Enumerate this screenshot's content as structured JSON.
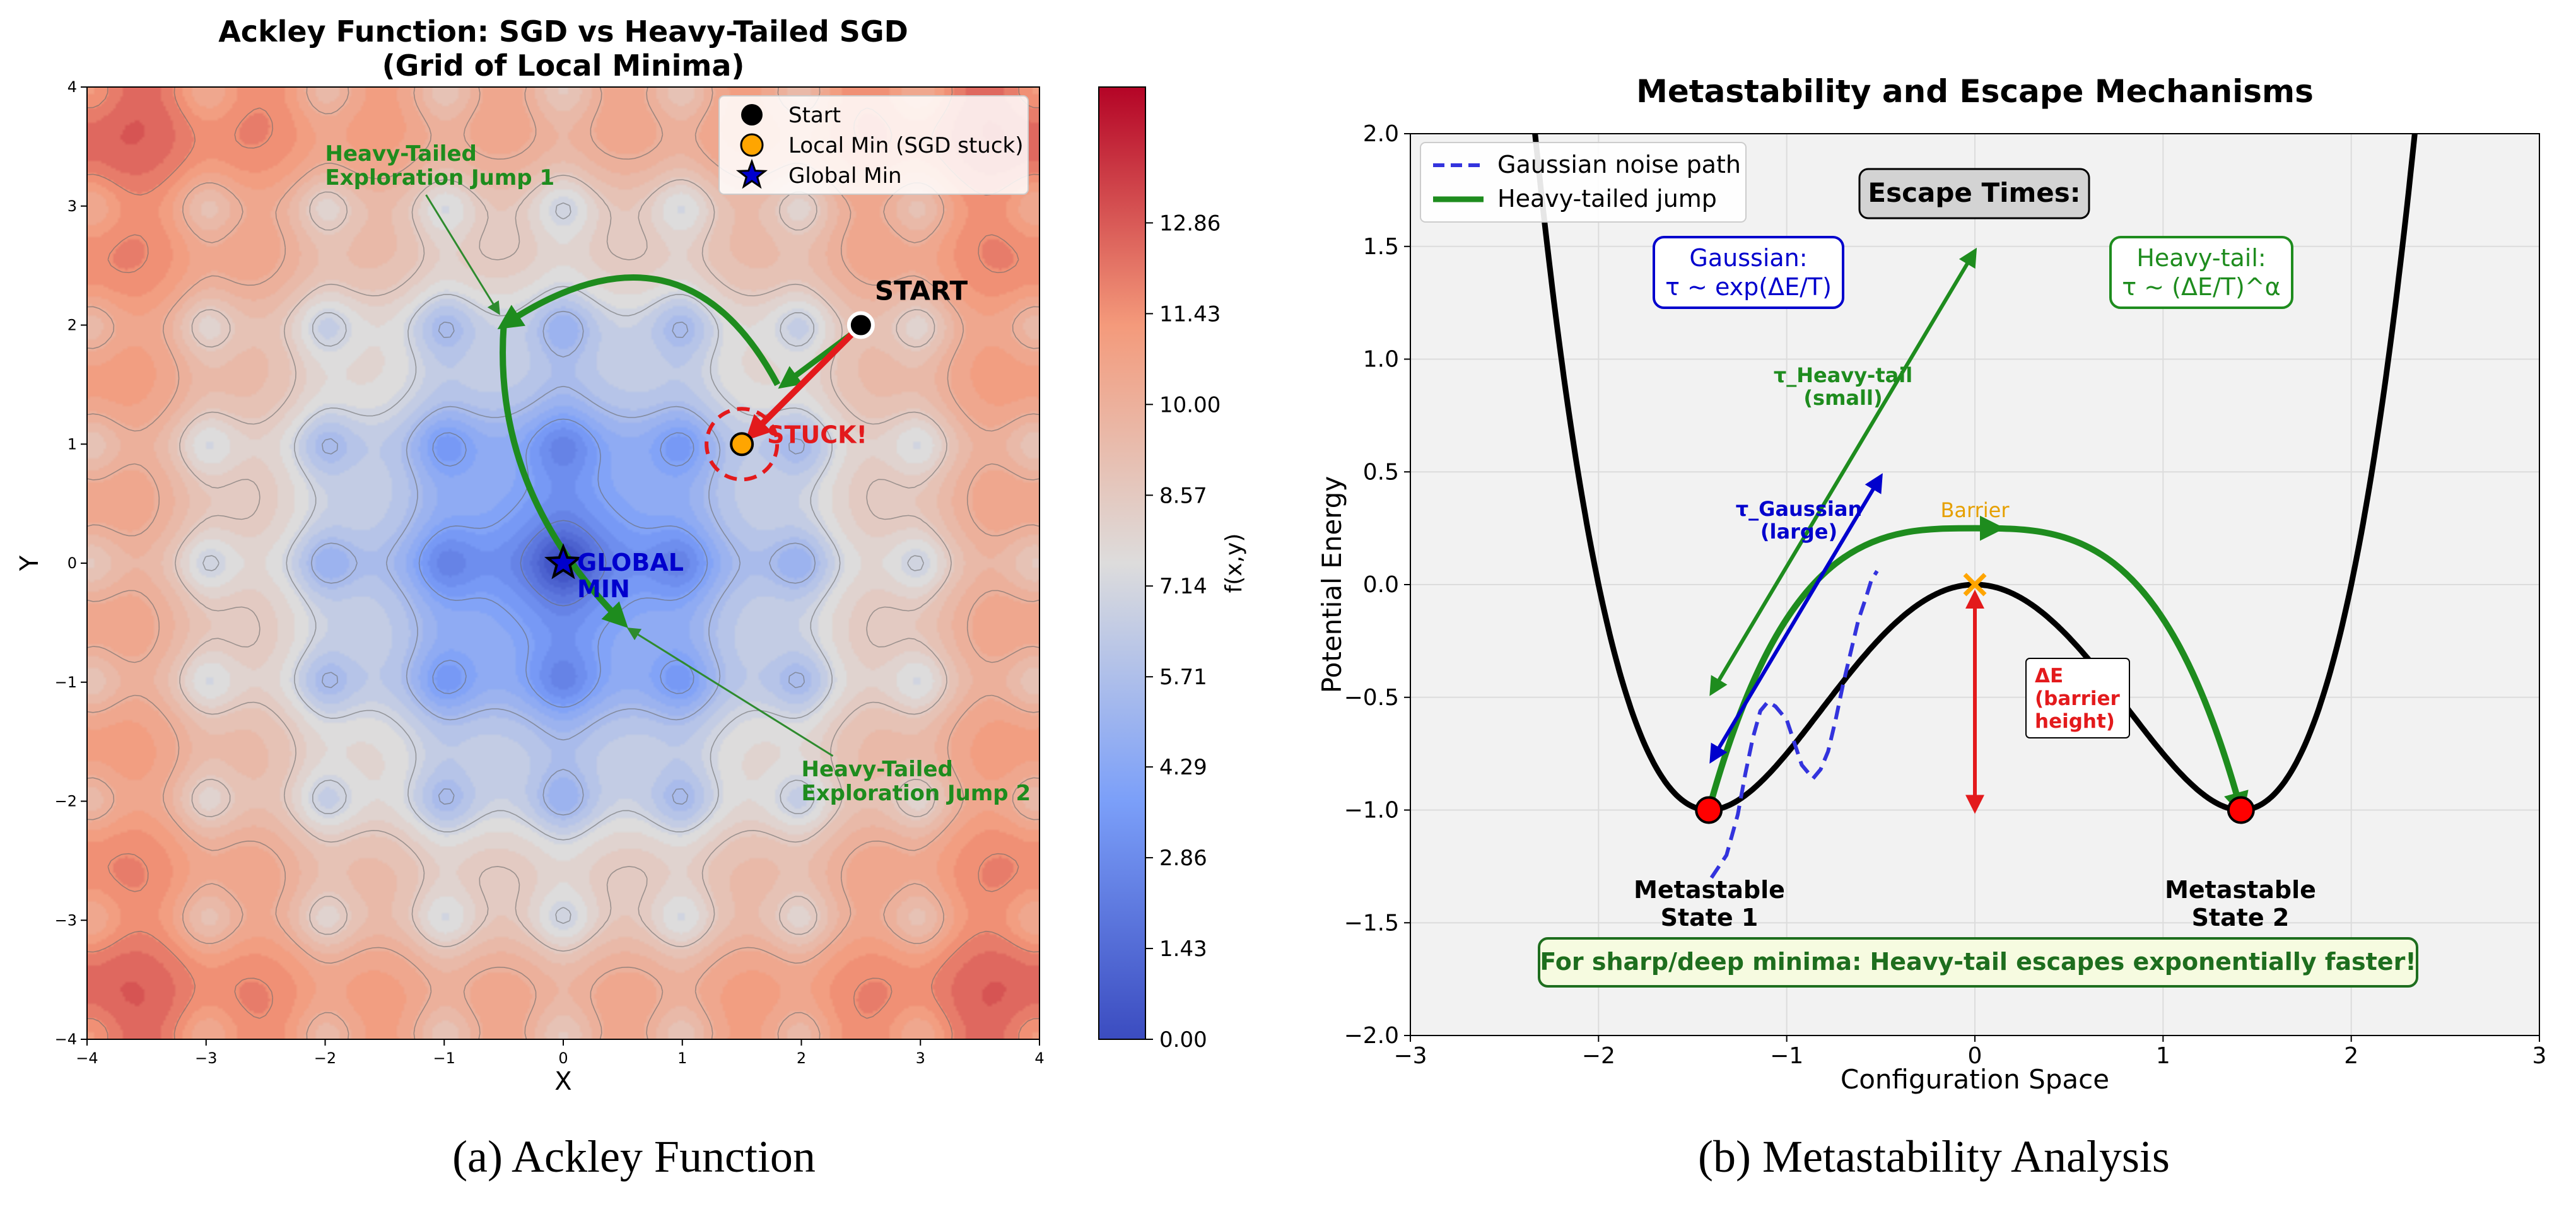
{
  "chart_data": [
    {
      "type": "contour",
      "title_line1": "Ackley Function: SGD vs Heavy-Tailed SGD",
      "title_line2": "(Grid of Local Minima)",
      "xlabel": "X",
      "ylabel": "Y",
      "xlim": [
        -4,
        4
      ],
      "ylim": [
        -4,
        4
      ],
      "xticks": [
        -4,
        -3,
        -2,
        -1,
        0,
        1,
        2,
        3,
        4
      ],
      "yticks": [
        -4,
        -3,
        -2,
        -1,
        0,
        1,
        2,
        3,
        4
      ],
      "xtick_labels": [
        "−4",
        "−3",
        "−2",
        "−1",
        "0",
        "1",
        "2",
        "3",
        "4"
      ],
      "ytick_labels": [
        "−4",
        "−3",
        "−2",
        "−1",
        "0",
        "1",
        "2",
        "3",
        "4"
      ],
      "colorbar": {
        "label": "f(x,y)",
        "range": [
          0,
          15
        ],
        "ticks": [
          0.0,
          1.43,
          2.86,
          4.29,
          5.71,
          7.14,
          8.57,
          10.0,
          11.43,
          12.86
        ],
        "tick_labels": [
          "0.00",
          "1.43",
          "2.86",
          "4.29",
          "5.71",
          "7.14",
          "8.57",
          "10.00",
          "11.43",
          "12.86"
        ],
        "cmap": "coolwarm"
      },
      "points": {
        "start": {
          "x": 2.5,
          "y": 2.0,
          "label": "START"
        },
        "local_min": {
          "x": 1.5,
          "y": 1.0,
          "label": "STUCK!"
        },
        "global_min": {
          "x": 0.0,
          "y": 0.0,
          "label_line1": "GLOBAL",
          "label_line2": "MIN"
        }
      },
      "sgd_path": [
        [
          2.5,
          2.0
        ],
        [
          1.5,
          1.0
        ]
      ],
      "heavy_tail_path": {
        "start": [
          1.8,
          1.5
        ],
        "control": [
          1.0,
          3.0
        ],
        "end": [
          -0.5,
          2.0
        ],
        "second_start": [
          -0.5,
          2.0
        ],
        "second_control": [
          -0.6,
          0.6
        ],
        "second_end": [
          0.5,
          -0.5
        ]
      },
      "annotations": [
        {
          "line1": "Heavy-Tailed",
          "line2": "Exploration Jump 1",
          "text_xy": [
            -2.0,
            3.2
          ],
          "point_xy": [
            -0.5,
            2.05
          ]
        },
        {
          "line1": "Heavy-Tailed",
          "line2": "Exploration Jump 2",
          "text_xy": [
            2.0,
            -1.8
          ],
          "point_xy": [
            0.5,
            -0.5
          ]
        }
      ],
      "legend": {
        "position": "top-right",
        "items": [
          {
            "label": "Start",
            "marker": "circle",
            "color": "#000000"
          },
          {
            "label": "Local Min (SGD stuck)",
            "marker": "circle",
            "color": "#ffa500"
          },
          {
            "label": "Global Min",
            "marker": "star",
            "color": "#0000cd"
          }
        ]
      },
      "caption": "(a) Ackley Function"
    },
    {
      "type": "line",
      "title": "Metastability and Escape Mechanisms",
      "xlabel": "Configuration Space",
      "ylabel": "Potential Energy",
      "xlim": [
        -3,
        3
      ],
      "ylim": [
        -2,
        2
      ],
      "xticks": [
        -3,
        -2,
        -1,
        0,
        1,
        2,
        3
      ],
      "yticks": [
        -2.0,
        -1.5,
        -1.0,
        -0.5,
        0.0,
        0.5,
        1.0,
        1.5,
        2.0
      ],
      "xtick_labels": [
        "−3",
        "−2",
        "−1",
        "0",
        "1",
        "2",
        "3"
      ],
      "ytick_labels": [
        "−2.0",
        "−1.5",
        "−1.0",
        "−0.5",
        "0.0",
        "0.5",
        "1.0",
        "1.5",
        "2.0"
      ],
      "potential": "V(x) = 0.25*x^4 - x^2",
      "minima": [
        {
          "x": -1.414,
          "y": -1.0,
          "label_line1": "Metastable",
          "label_line2": "State 1"
        },
        {
          "x": 1.414,
          "y": -1.0,
          "label_line1": "Metastable",
          "label_line2": "State 2"
        }
      ],
      "barrier": {
        "x": 0.0,
        "y": 0.0,
        "label": "Barrier"
      },
      "series": [
        {
          "name": "Gaussian noise path",
          "style": "dashed",
          "color": "#3333dd",
          "x": [
            -1.4,
            -1.32,
            -1.26,
            -1.22,
            -1.18,
            -1.14,
            -1.1,
            -1.06,
            -1.0,
            -0.96,
            -0.92,
            -0.86,
            -0.82,
            -0.78,
            -0.74,
            -0.7,
            -0.66,
            -0.62,
            -0.58,
            -0.55,
            -0.52
          ],
          "y": [
            -1.3,
            -1.2,
            -1.02,
            -0.84,
            -0.68,
            -0.56,
            -0.52,
            -0.54,
            -0.6,
            -0.7,
            -0.8,
            -0.86,
            -0.82,
            -0.74,
            -0.6,
            -0.44,
            -0.3,
            -0.16,
            -0.06,
            0.02,
            0.06
          ]
        },
        {
          "name": "Heavy-tailed jump",
          "style": "solid",
          "color": "#1e8c1e",
          "x": [
            -1.414,
            -0.8,
            -0.3,
            0.0,
            0.3,
            0.8,
            1.414
          ],
          "y": [
            -1.0,
            -0.05,
            0.22,
            0.25,
            0.22,
            -0.05,
            -1.0
          ]
        }
      ],
      "delta_e": {
        "x": 0.0,
        "y_from": 0.0,
        "y_to": -1.0,
        "label_line1": "ΔE",
        "label_line2": "(barrier",
        "label_line3": "height)"
      },
      "tau_arrows": [
        {
          "name": "τ_Heavy-tail",
          "line1": "τ_Heavy-tail",
          "line2": "(small)",
          "from": [
            -1.4,
            -0.48
          ],
          "to": [
            0.0,
            1.48
          ]
        },
        {
          "name": "τ_Gaussian",
          "line1": "τ_Gaussian",
          "line2": "(large)",
          "from": [
            -1.4,
            -0.78
          ],
          "to": [
            -0.5,
            0.48
          ]
        }
      ],
      "escape_times": {
        "title": "Escape Times:",
        "gaussian_line1": "Gaussian:",
        "gaussian_line2": "τ ~ exp(ΔE/T)",
        "heavy_line1": "Heavy-tail:",
        "heavy_line2": "τ ~ (ΔE/T)^α"
      },
      "note": "For sharp/deep minima: Heavy-tail escapes exponentially faster!",
      "legend": {
        "position": "top-left",
        "items": [
          {
            "label": "Gaussian noise path",
            "style": "dashed",
            "color": "#3333dd"
          },
          {
            "label": "Heavy-tailed jump",
            "style": "solid",
            "color": "#1e8c1e"
          }
        ]
      },
      "caption": "(b) Metastability Analysis"
    }
  ]
}
